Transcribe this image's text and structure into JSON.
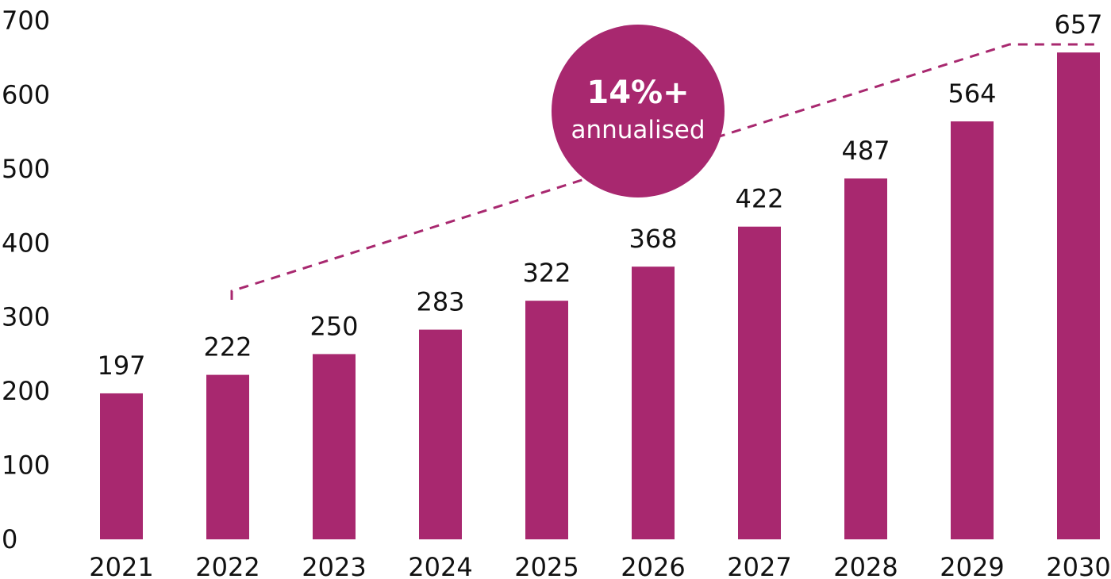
{
  "chart_data": {
    "type": "bar",
    "categories": [
      "2021",
      "2022",
      "2023",
      "2024",
      "2025",
      "2026",
      "2027",
      "2028",
      "2029",
      "2030"
    ],
    "values": [
      197,
      222,
      250,
      283,
      322,
      368,
      422,
      487,
      564,
      657
    ],
    "yticks": [
      "0",
      "100",
      "200",
      "300",
      "400",
      "500",
      "600",
      "700"
    ],
    "ylim": [
      0,
      700
    ],
    "grid": false,
    "bar_color": "#A8286F",
    "annotation": {
      "headline": "14%+",
      "subtext": "annualised",
      "color": "#A8286F",
      "from_category": "2022",
      "to_category": "2030"
    }
  }
}
